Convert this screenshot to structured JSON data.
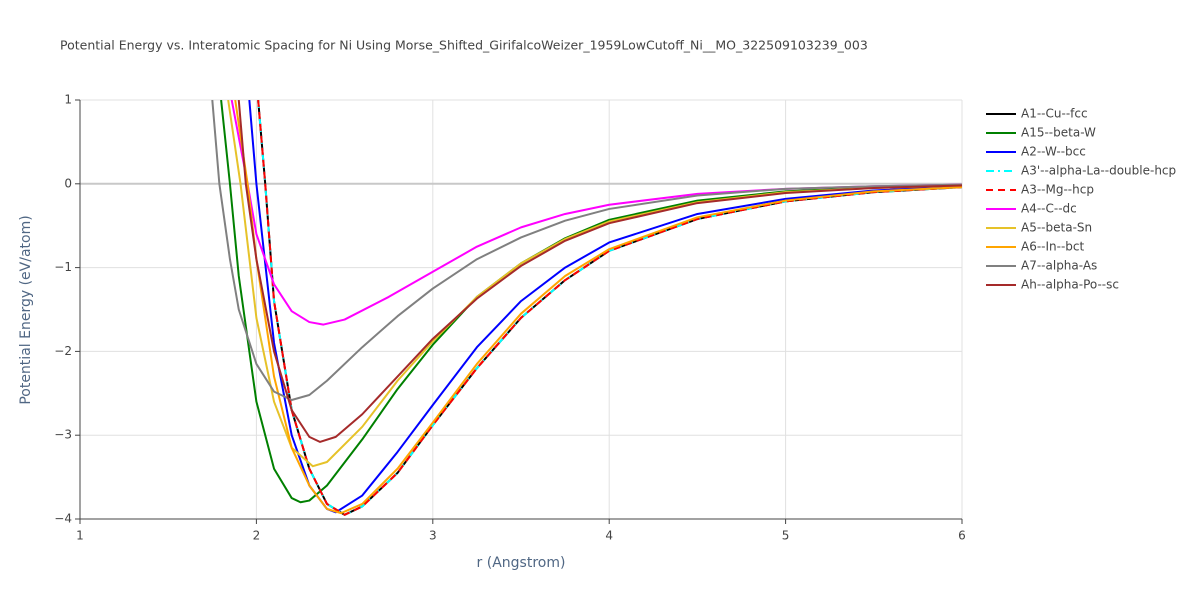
{
  "chart_data": {
    "type": "line",
    "title": "Potential Energy vs. Interatomic Spacing for Ni Using Morse_Shifted_GirifalcoWeizer_1959LowCutoff_Ni__MO_322509103239_003",
    "x_label": "r (Angstrom)",
    "y_label": "Potential Energy (eV/atom)",
    "xlim": [
      1,
      6
    ],
    "xticks": [
      1,
      2,
      3,
      4,
      5,
      6
    ],
    "ylim": [
      -4,
      1
    ],
    "yticks": [
      {
        "value": -4,
        "label": "−4"
      },
      {
        "value": -3,
        "label": "−3"
      },
      {
        "value": -2,
        "label": "−2"
      },
      {
        "value": -1,
        "label": "−1"
      },
      0,
      1
    ],
    "grid": true,
    "legend": "right",
    "series": [
      {
        "name": "A1--Cu--fcc",
        "color": "#000000",
        "dash": "solid",
        "x": [
          2.01,
          2.05,
          2.1,
          2.2,
          2.3,
          2.4,
          2.5,
          2.6,
          2.8,
          3.0,
          3.25,
          3.5,
          3.75,
          4.0,
          4.5,
          5.0,
          5.5,
          6.0
        ],
        "values": [
          1,
          0,
          -1.4,
          -2.7,
          -3.4,
          -3.82,
          -3.95,
          -3.85,
          -3.45,
          -2.88,
          -2.2,
          -1.6,
          -1.15,
          -0.8,
          -0.42,
          -0.21,
          -0.1,
          -0.04
        ]
      },
      {
        "name": "A15--beta-W",
        "color": "#008000",
        "dash": "solid",
        "x": [
          1.8,
          1.85,
          1.9,
          2.0,
          2.1,
          2.2,
          2.25,
          2.3,
          2.4,
          2.6,
          2.8,
          3.0,
          3.25,
          3.5,
          3.75,
          4.0,
          4.5,
          5.0,
          5.5,
          6.0
        ],
        "values": [
          1,
          0,
          -1.1,
          -2.6,
          -3.4,
          -3.75,
          -3.8,
          -3.78,
          -3.6,
          -3.05,
          -2.45,
          -1.92,
          -1.35,
          -0.95,
          -0.65,
          -0.43,
          -0.2,
          -0.09,
          -0.04,
          -0.02
        ]
      },
      {
        "name": "A2--W--bcc",
        "color": "#0000ff",
        "dash": "solid",
        "x": [
          1.96,
          2.0,
          2.1,
          2.2,
          2.3,
          2.4,
          2.45,
          2.6,
          2.8,
          3.0,
          3.25,
          3.5,
          3.75,
          4.0,
          4.5,
          5.0,
          5.5,
          6.0
        ],
        "values": [
          1,
          0,
          -1.9,
          -3.0,
          -3.6,
          -3.88,
          -3.92,
          -3.72,
          -3.2,
          -2.64,
          -1.95,
          -1.4,
          -1.0,
          -0.7,
          -0.36,
          -0.18,
          -0.08,
          -0.03
        ]
      },
      {
        "name": "A3'--alpha-La--double-hcp",
        "color": "#00ffff",
        "dash": "dashdot",
        "x": [
          2.01,
          2.05,
          2.1,
          2.2,
          2.3,
          2.4,
          2.5,
          2.6,
          2.8,
          3.0,
          3.25,
          3.5,
          3.75,
          4.0,
          4.5,
          5.0,
          5.5,
          6.0
        ],
        "values": [
          1,
          0,
          -1.4,
          -2.7,
          -3.4,
          -3.82,
          -3.95,
          -3.85,
          -3.45,
          -2.88,
          -2.2,
          -1.6,
          -1.15,
          -0.8,
          -0.42,
          -0.21,
          -0.1,
          -0.04
        ]
      },
      {
        "name": "A3--Mg--hcp",
        "color": "#ff0000",
        "dash": "dash",
        "x": [
          2.01,
          2.05,
          2.1,
          2.2,
          2.3,
          2.4,
          2.5,
          2.6,
          2.8,
          3.0,
          3.25,
          3.5,
          3.75,
          4.0,
          4.5,
          5.0,
          5.5,
          6.0
        ],
        "values": [
          1,
          0,
          -1.4,
          -2.7,
          -3.4,
          -3.82,
          -3.95,
          -3.85,
          -3.45,
          -2.88,
          -2.2,
          -1.6,
          -1.15,
          -0.8,
          -0.42,
          -0.21,
          -0.1,
          -0.04
        ]
      },
      {
        "name": "A4--C--dc",
        "color": "#ff00ff",
        "dash": "solid",
        "x": [
          1.86,
          1.95,
          2.0,
          2.1,
          2.2,
          2.3,
          2.38,
          2.5,
          2.75,
          3.0,
          3.25,
          3.5,
          3.75,
          4.0,
          4.5,
          5.0,
          5.5,
          6.0
        ],
        "values": [
          1,
          0,
          -0.6,
          -1.2,
          -1.52,
          -1.65,
          -1.68,
          -1.62,
          -1.35,
          -1.05,
          -0.75,
          -0.52,
          -0.36,
          -0.25,
          -0.12,
          -0.06,
          -0.03,
          -0.01
        ]
      },
      {
        "name": "A5--beta-Sn",
        "color": "#e6c229",
        "dash": "solid",
        "x": [
          1.84,
          1.91,
          2.0,
          2.1,
          2.2,
          2.32,
          2.4,
          2.6,
          2.8,
          3.0,
          3.25,
          3.5,
          3.75,
          4.0,
          4.5,
          5.0,
          5.5,
          6.0
        ],
        "values": [
          1,
          0,
          -1.6,
          -2.6,
          -3.15,
          -3.37,
          -3.32,
          -2.9,
          -2.35,
          -1.88,
          -1.35,
          -0.95,
          -0.66,
          -0.45,
          -0.22,
          -0.1,
          -0.05,
          -0.02
        ]
      },
      {
        "name": "A6--In--bct",
        "color": "#ffa500",
        "dash": "solid",
        "x": [
          1.88,
          1.95,
          2.0,
          2.1,
          2.2,
          2.3,
          2.4,
          2.48,
          2.6,
          2.8,
          3.0,
          3.25,
          3.5,
          3.75,
          4.0,
          4.5,
          5.0,
          5.5,
          6.0
        ],
        "values": [
          1,
          0,
          -0.9,
          -2.3,
          -3.15,
          -3.6,
          -3.88,
          -3.93,
          -3.82,
          -3.4,
          -2.85,
          -2.15,
          -1.55,
          -1.1,
          -0.78,
          -0.4,
          -0.2,
          -0.09,
          -0.04
        ]
      },
      {
        "name": "A7--alpha-As",
        "color": "#808080",
        "dash": "solid",
        "x": [
          1.75,
          1.79,
          1.85,
          1.9,
          2.0,
          2.1,
          2.2,
          2.3,
          2.4,
          2.6,
          2.8,
          3.0,
          3.25,
          3.5,
          3.75,
          4.0,
          4.5,
          5.0,
          5.5,
          6.0
        ],
        "values": [
          1,
          0,
          -0.9,
          -1.5,
          -2.15,
          -2.48,
          -2.58,
          -2.52,
          -2.35,
          -1.95,
          -1.58,
          -1.25,
          -0.9,
          -0.64,
          -0.44,
          -0.3,
          -0.14,
          -0.06,
          -0.03,
          -0.01
        ]
      },
      {
        "name": "Ah--alpha-Po--sc",
        "color": "#a52a2a",
        "dash": "solid",
        "x": [
          1.9,
          1.94,
          2.0,
          2.1,
          2.2,
          2.3,
          2.36,
          2.45,
          2.6,
          2.8,
          3.0,
          3.25,
          3.5,
          3.75,
          4.0,
          4.5,
          5.0,
          5.5,
          6.0
        ],
        "values": [
          1,
          0,
          -0.9,
          -2.0,
          -2.7,
          -3.02,
          -3.08,
          -3.02,
          -2.75,
          -2.3,
          -1.85,
          -1.37,
          -0.98,
          -0.68,
          -0.47,
          -0.23,
          -0.11,
          -0.05,
          -0.02
        ]
      }
    ]
  }
}
